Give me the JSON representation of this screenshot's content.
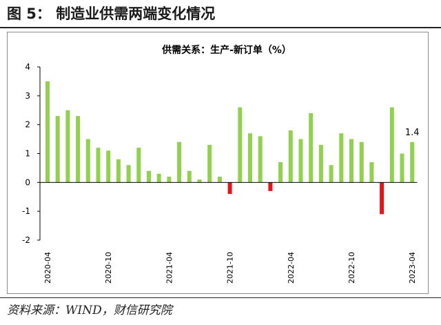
{
  "figure": {
    "title": "图 5：  制造业供需两端变化情况",
    "source": "资料来源：WIND，财信研究院"
  },
  "colors": {
    "positive": "#92D050",
    "negative": "#E8121A",
    "axis": "#000000"
  },
  "chart_data": {
    "type": "bar",
    "title": "供需关系：生产-新订单（%）",
    "xlabel": "",
    "ylabel": "",
    "ylim": [
      -2,
      4
    ],
    "yticks": [
      4,
      3,
      2,
      1,
      0,
      -1,
      -2
    ],
    "grid": false,
    "categories": [
      "2020-04",
      "2020-05",
      "2020-06",
      "2020-07",
      "2020-08",
      "2020-09",
      "2020-10",
      "2020-11",
      "2020-12",
      "2021-01",
      "2021-02",
      "2021-03",
      "2021-04",
      "2021-05",
      "2021-06",
      "2021-07",
      "2021-08",
      "2021-09",
      "2021-10",
      "2021-11",
      "2021-12",
      "2022-01",
      "2022-02",
      "2022-03",
      "2022-04",
      "2022-05",
      "2022-06",
      "2022-07",
      "2022-08",
      "2022-09",
      "2022-10",
      "2022-11",
      "2022-12",
      "2023-01",
      "2023-02",
      "2023-03",
      "2023-04"
    ],
    "values": [
      3.5,
      2.3,
      2.5,
      2.3,
      1.5,
      1.2,
      1.1,
      0.8,
      0.6,
      1.2,
      0.4,
      0.3,
      0.2,
      1.4,
      0.4,
      0.1,
      1.3,
      0.2,
      -0.4,
      2.6,
      1.7,
      1.6,
      -0.3,
      0.7,
      1.8,
      1.5,
      2.4,
      1.3,
      0.6,
      1.7,
      1.5,
      1.4,
      0.7,
      -1.1,
      2.6,
      1.0,
      1.4
    ],
    "xtick_labels": [
      "2020-04",
      "2020-10",
      "2021-04",
      "2021-10",
      "2022-04",
      "2022-10",
      "2023-04"
    ],
    "xtick_indices": [
      0,
      6,
      12,
      18,
      24,
      30,
      36
    ],
    "annotation": {
      "index": 36,
      "text": "1.4"
    }
  }
}
